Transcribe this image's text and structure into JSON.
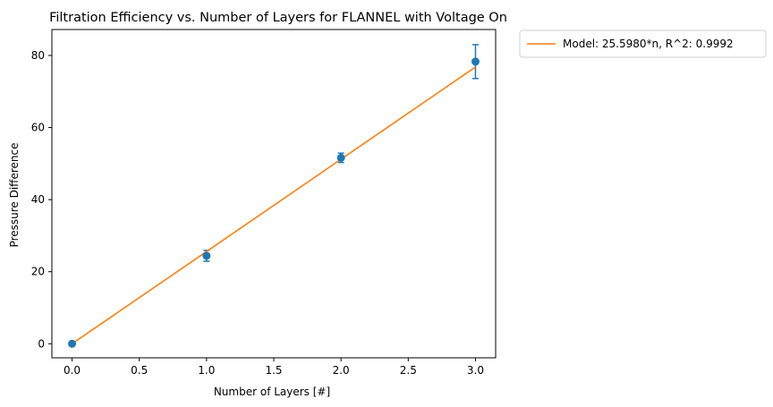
{
  "chart_data": {
    "type": "scatter",
    "title": "Filtration Efficiency vs. Number of Layers for FLANNEL with Voltage On",
    "xlabel": "Number of Layers [#]",
    "ylabel": "Pressure Difference",
    "xlim": [
      -0.15,
      3.15
    ],
    "ylim": [
      -3.9,
      87.2
    ],
    "xticks": [
      0.0,
      0.5,
      1.0,
      1.5,
      2.0,
      2.5,
      3.0
    ],
    "xtick_labels": [
      "0.0",
      "0.5",
      "1.0",
      "1.5",
      "2.0",
      "2.5",
      "3.0"
    ],
    "yticks": [
      0,
      20,
      40,
      60,
      80
    ],
    "ytick_labels": [
      "0",
      "20",
      "40",
      "60",
      "80"
    ],
    "grid": false,
    "legend_position": "outside-top-right",
    "series": [
      {
        "kind": "errorbar-scatter",
        "color": "#1f77b4",
        "x": [
          0,
          1,
          2,
          3
        ],
        "y": [
          0.0,
          24.4,
          51.6,
          78.3
        ],
        "yerr": [
          0.0,
          1.5,
          1.3,
          4.7
        ]
      },
      {
        "kind": "line",
        "name": "Model: 25.5980*n, R^2: 0.9992",
        "color": "#ff7f0e",
        "slope": 25.598,
        "x": [
          0,
          3
        ]
      }
    ]
  }
}
